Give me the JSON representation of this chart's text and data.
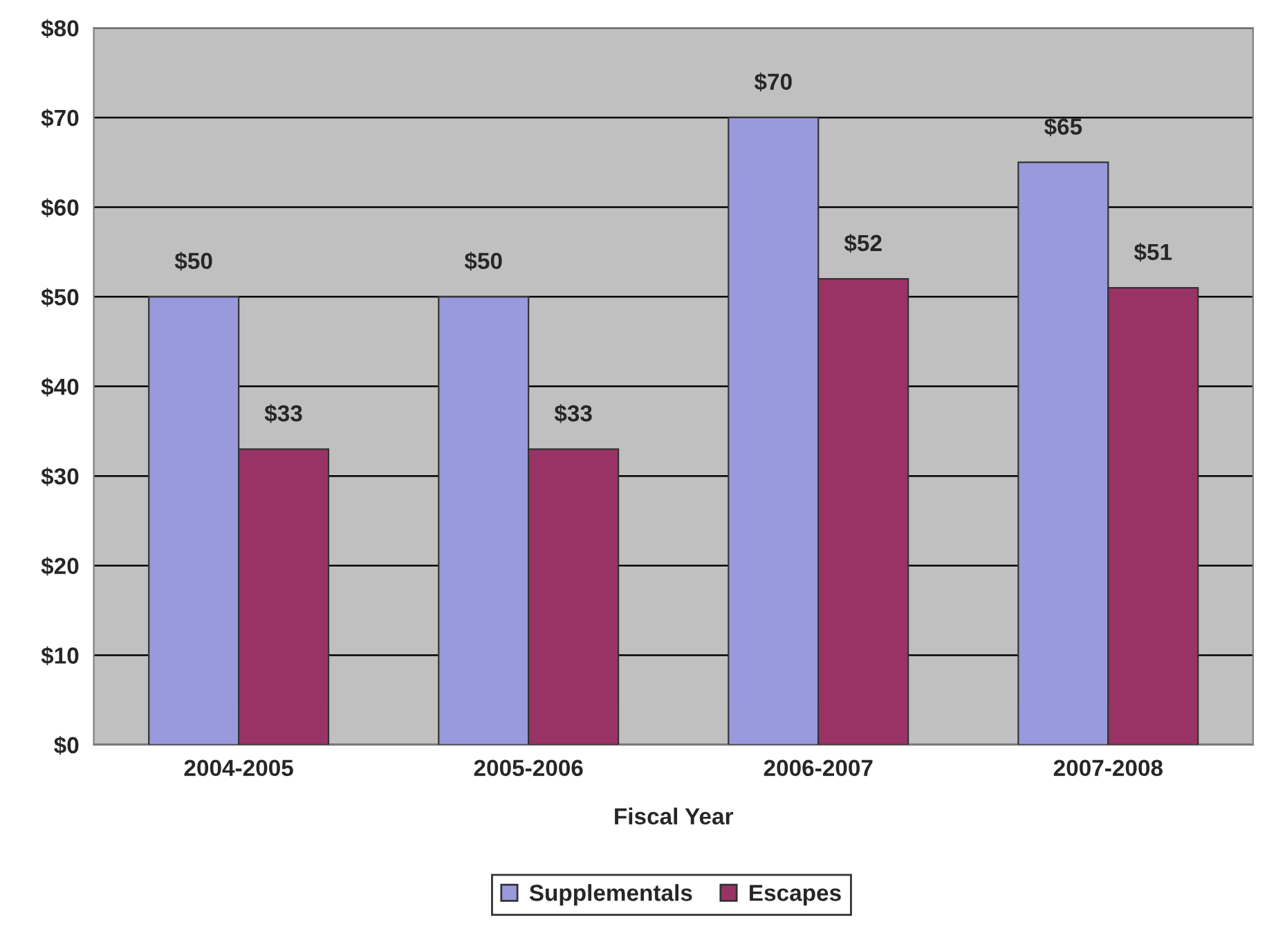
{
  "chart_data": {
    "type": "bar",
    "xlabel": "Fiscal Year",
    "categories": [
      "2004-2005",
      "2005-2006",
      "2006-2007",
      "2007-2008"
    ],
    "series": [
      {
        "name": "Supplementals",
        "color": "#9999dd",
        "values": [
          50,
          50,
          70,
          65
        ],
        "value_labels": [
          "$50",
          "$50",
          "$70",
          "$65"
        ]
      },
      {
        "name": "Escapes",
        "color": "#993366",
        "values": [
          33,
          33,
          52,
          51
        ],
        "value_labels": [
          "$33",
          "$33",
          "$52",
          "$51"
        ]
      }
    ],
    "ylim": [
      0,
      80
    ],
    "yticks": [
      {
        "value": 0,
        "label": "$0"
      },
      {
        "value": 10,
        "label": "$10"
      },
      {
        "value": 20,
        "label": "$20"
      },
      {
        "value": 30,
        "label": "$30"
      },
      {
        "value": 40,
        "label": "$40"
      },
      {
        "value": 50,
        "label": "$50"
      },
      {
        "value": 60,
        "label": "$60"
      },
      {
        "value": 70,
        "label": "$70"
      },
      {
        "value": 80,
        "label": "$80"
      }
    ],
    "grid": "y",
    "legend": "bottom"
  }
}
